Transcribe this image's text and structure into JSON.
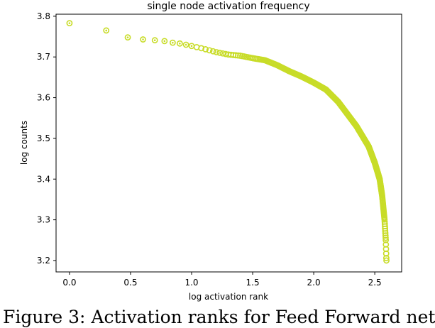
{
  "caption": "Figure 3:  Activation ranks for Feed Forward net",
  "chart_data": {
    "type": "scatter",
    "title": "single node activation frequency",
    "xlabel": "log activation rank",
    "ylabel": "log counts",
    "xlim": [
      -0.11,
      2.72
    ],
    "ylim": [
      3.172,
      3.805
    ],
    "xticks": [
      0.0,
      0.5,
      1.0,
      1.5,
      2.0,
      2.5
    ],
    "xtick_labels": [
      "0.0",
      "0.5",
      "1.0",
      "1.5",
      "2.0",
      "2.5"
    ],
    "yticks": [
      3.2,
      3.3,
      3.4,
      3.5,
      3.6,
      3.7,
      3.8
    ],
    "ytick_labels": [
      "3.2",
      "3.3",
      "3.4",
      "3.5",
      "3.6",
      "3.7",
      "3.8"
    ],
    "marker_color": "#c8dc28",
    "grid": false,
    "curve_points": [
      [
        0.0,
        3.783
      ],
      [
        0.301,
        3.765
      ],
      [
        0.477,
        3.748
      ],
      [
        0.602,
        3.743
      ],
      [
        0.699,
        3.741
      ],
      [
        0.778,
        3.739
      ],
      [
        0.845,
        3.735
      ],
      [
        0.903,
        3.733
      ],
      [
        0.954,
        3.73
      ],
      [
        1.0,
        3.727
      ],
      [
        1.1,
        3.72
      ],
      [
        1.2,
        3.712
      ],
      [
        1.3,
        3.706
      ],
      [
        1.4,
        3.703
      ],
      [
        1.5,
        3.697
      ],
      [
        1.6,
        3.692
      ],
      [
        1.7,
        3.68
      ],
      [
        1.8,
        3.665
      ],
      [
        1.9,
        3.652
      ],
      [
        2.0,
        3.637
      ],
      [
        2.1,
        3.62
      ],
      [
        2.2,
        3.59
      ],
      [
        2.3,
        3.55
      ],
      [
        2.35,
        3.53
      ],
      [
        2.4,
        3.505
      ],
      [
        2.45,
        3.48
      ],
      [
        2.5,
        3.44
      ],
      [
        2.54,
        3.4
      ],
      [
        2.56,
        3.36
      ],
      [
        2.58,
        3.3
      ],
      [
        2.59,
        3.25
      ],
      [
        2.595,
        3.2
      ]
    ]
  }
}
